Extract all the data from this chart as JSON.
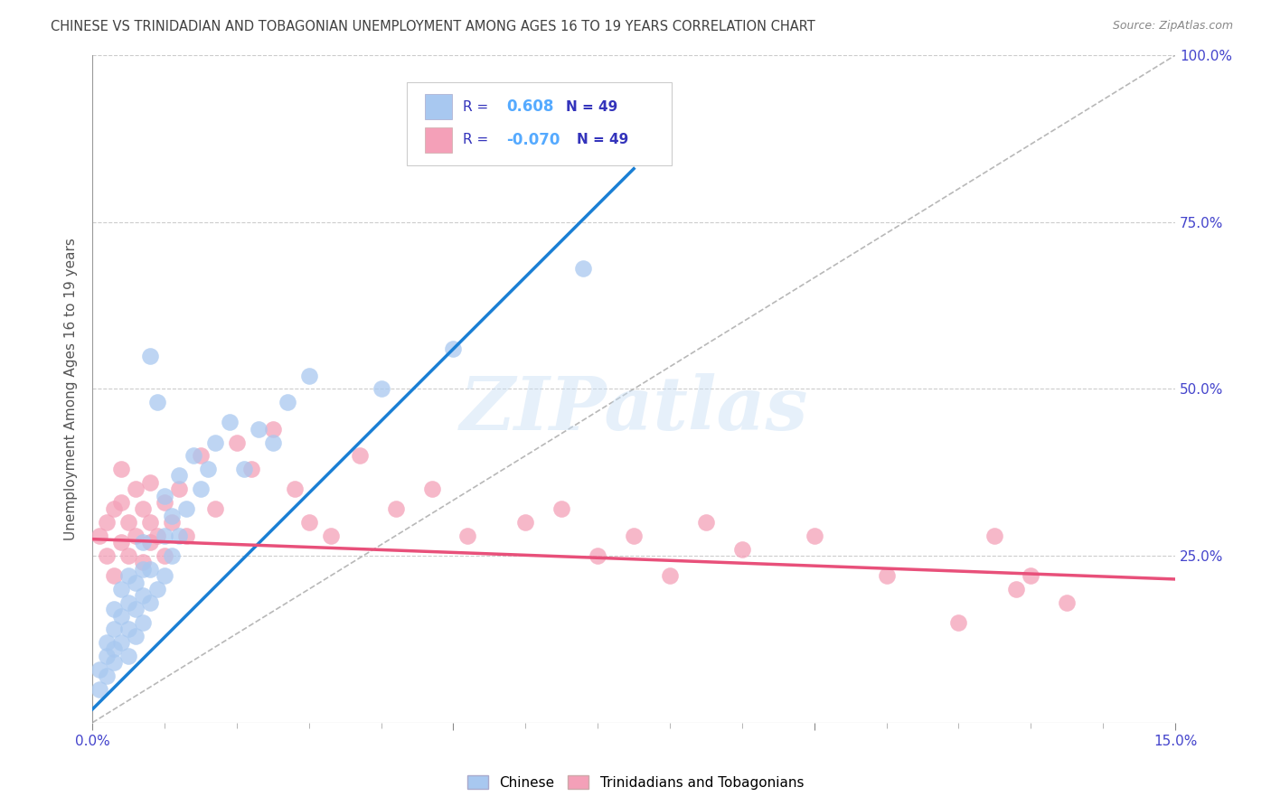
{
  "title": "CHINESE VS TRINIDADIAN AND TOBAGONIAN UNEMPLOYMENT AMONG AGES 16 TO 19 YEARS CORRELATION CHART",
  "source": "Source: ZipAtlas.com",
  "ylabel": "Unemployment Among Ages 16 to 19 years",
  "xlim": [
    0,
    0.15
  ],
  "ylim": [
    0,
    1.0
  ],
  "chinese_R": "0.608",
  "chinese_N": "49",
  "trini_R": "-0.070",
  "trini_N": "49",
  "chinese_color": "#a8c8f0",
  "trini_color": "#f4a0b8",
  "chinese_line_color": "#1a7fd4",
  "trini_line_color": "#e8507a",
  "ref_line_color": "#b8b8b8",
  "legend_text_color": "#3333bb",
  "value_color": "#55aaff",
  "title_color": "#404040",
  "watermark": "ZIPatlas",
  "background_color": "#ffffff",
  "grid_color": "#cccccc",
  "chinese_x": [
    0.001,
    0.001,
    0.002,
    0.002,
    0.002,
    0.003,
    0.003,
    0.003,
    0.003,
    0.004,
    0.004,
    0.004,
    0.005,
    0.005,
    0.005,
    0.005,
    0.006,
    0.006,
    0.006,
    0.007,
    0.007,
    0.007,
    0.007,
    0.008,
    0.008,
    0.008,
    0.009,
    0.009,
    0.01,
    0.01,
    0.01,
    0.011,
    0.011,
    0.012,
    0.012,
    0.013,
    0.014,
    0.015,
    0.016,
    0.017,
    0.019,
    0.021,
    0.023,
    0.025,
    0.027,
    0.03,
    0.04,
    0.05,
    0.068
  ],
  "chinese_y": [
    0.05,
    0.08,
    0.1,
    0.12,
    0.07,
    0.11,
    0.14,
    0.17,
    0.09,
    0.12,
    0.16,
    0.2,
    0.1,
    0.14,
    0.18,
    0.22,
    0.13,
    0.17,
    0.21,
    0.15,
    0.19,
    0.23,
    0.27,
    0.18,
    0.23,
    0.55,
    0.2,
    0.48,
    0.22,
    0.28,
    0.34,
    0.25,
    0.31,
    0.28,
    0.37,
    0.32,
    0.4,
    0.35,
    0.38,
    0.42,
    0.45,
    0.38,
    0.44,
    0.42,
    0.48,
    0.52,
    0.5,
    0.56,
    0.68
  ],
  "trini_x": [
    0.001,
    0.002,
    0.002,
    0.003,
    0.003,
    0.004,
    0.004,
    0.004,
    0.005,
    0.005,
    0.006,
    0.006,
    0.007,
    0.007,
    0.008,
    0.008,
    0.008,
    0.009,
    0.01,
    0.01,
    0.011,
    0.012,
    0.013,
    0.015,
    0.017,
    0.02,
    0.022,
    0.025,
    0.028,
    0.03,
    0.033,
    0.037,
    0.042,
    0.047,
    0.052,
    0.06,
    0.065,
    0.07,
    0.075,
    0.08,
    0.085,
    0.09,
    0.1,
    0.11,
    0.12,
    0.125,
    0.128,
    0.13,
    0.135
  ],
  "trini_y": [
    0.28,
    0.25,
    0.3,
    0.22,
    0.32,
    0.27,
    0.33,
    0.38,
    0.25,
    0.3,
    0.28,
    0.35,
    0.24,
    0.32,
    0.27,
    0.3,
    0.36,
    0.28,
    0.25,
    0.33,
    0.3,
    0.35,
    0.28,
    0.4,
    0.32,
    0.42,
    0.38,
    0.44,
    0.35,
    0.3,
    0.28,
    0.4,
    0.32,
    0.35,
    0.28,
    0.3,
    0.32,
    0.25,
    0.28,
    0.22,
    0.3,
    0.26,
    0.28,
    0.22,
    0.15,
    0.28,
    0.2,
    0.22,
    0.18
  ],
  "blue_line_x0": 0.0,
  "blue_line_y0": 0.02,
  "blue_line_x1": 0.075,
  "blue_line_y1": 0.83,
  "pink_line_x0": 0.0,
  "pink_line_y0": 0.275,
  "pink_line_x1": 0.15,
  "pink_line_y1": 0.215
}
